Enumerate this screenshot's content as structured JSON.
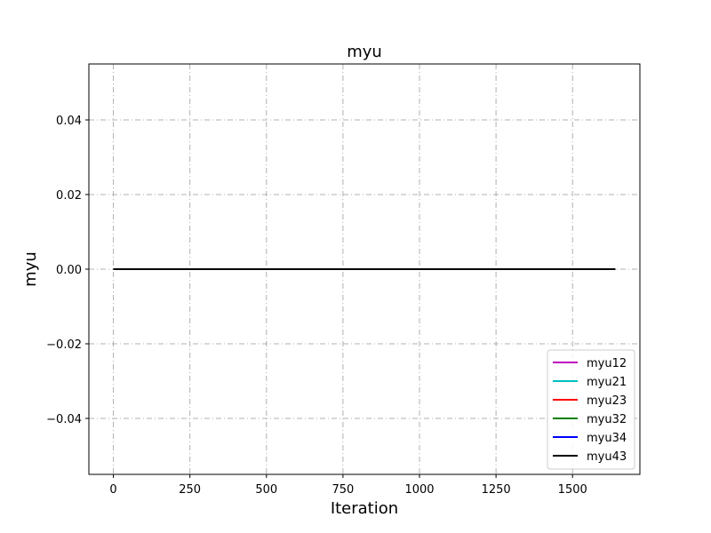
{
  "chart_data": {
    "type": "line",
    "title": "myu",
    "xlabel": "Iteration",
    "ylabel": "myu",
    "xlim": [
      -80,
      1720
    ],
    "ylim": [
      -0.055,
      0.055
    ],
    "xticks": [
      0,
      250,
      500,
      750,
      1000,
      1250,
      1500
    ],
    "xtick_labels": [
      "0",
      "250",
      "500",
      "750",
      "1000",
      "1250",
      "1500"
    ],
    "yticks": [
      -0.04,
      -0.02,
      0.0,
      0.02,
      0.04
    ],
    "ytick_labels": [
      "−0.04",
      "−0.02",
      "0.00",
      "0.02",
      "0.04"
    ],
    "grid": true,
    "legend_position": "lower-right",
    "series": [
      {
        "name": "myu12",
        "color": "#bf00bf",
        "x": [
          0,
          1640
        ],
        "y": [
          0.0,
          0.0
        ]
      },
      {
        "name": "myu21",
        "color": "#00bfbf",
        "x": [
          0,
          1640
        ],
        "y": [
          0.0,
          0.0
        ]
      },
      {
        "name": "myu23",
        "color": "#ff0000",
        "x": [
          0,
          1640
        ],
        "y": [
          0.0,
          0.0
        ]
      },
      {
        "name": "myu32",
        "color": "#008000",
        "x": [
          0,
          1640
        ],
        "y": [
          0.0,
          0.0
        ]
      },
      {
        "name": "myu34",
        "color": "#0000ff",
        "x": [
          0,
          1640
        ],
        "y": [
          0.0,
          0.0
        ]
      },
      {
        "name": "myu43",
        "color": "#000000",
        "x": [
          0,
          1640
        ],
        "y": [
          0.0,
          0.0
        ]
      }
    ]
  }
}
